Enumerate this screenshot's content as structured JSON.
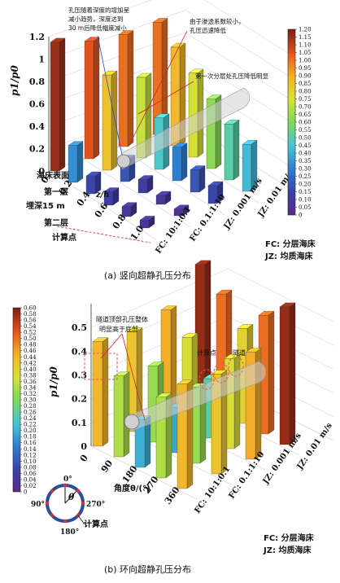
{
  "figure": {
    "panel_a_caption": "(a) 竖向超静孔压分布",
    "panel_b_caption": "(b) 环向超静孔压分布"
  },
  "chart_data": [
    {
      "type": "bar",
      "panel": "a",
      "ylabel": "p1/p0",
      "xlabel": "z/h",
      "ylim": [
        0,
        1.2
      ],
      "yticks": [
        0,
        0.2,
        0.4,
        0.6,
        0.8,
        1.0,
        1.2
      ],
      "categories": [
        "0",
        "0.2",
        "0.4",
        "0.6",
        "0.8",
        "1.0"
      ],
      "series": [
        {
          "name": "FC: 10:1:0.1",
          "values": [
            1.15,
            0.33,
            0.16,
            0.12,
            0.09,
            0.07
          ]
        },
        {
          "name": "FC: 0.1:1:10",
          "values": [
            1.05,
            0.85,
            0.2,
            0.12,
            0.08,
            0.06
          ]
        },
        {
          "name": "JZ: 0.001 m/s",
          "values": [
            1.0,
            0.72,
            0.46,
            0.3,
            0.2,
            0.16
          ]
        },
        {
          "name": "JZ: 0.01 m/s",
          "values": [
            1.0,
            0.88,
            0.75,
            0.62,
            0.5,
            0.42
          ]
        }
      ],
      "colorbar": {
        "min": 0,
        "max": 1.2,
        "ticks": [
          "0",
          "0.05",
          "0.10",
          "0.15",
          "0.20",
          "0.25",
          "0.30",
          "0.35",
          "0.40",
          "0.45",
          "0.50",
          "0.55",
          "0.60",
          "0.65",
          "0.70",
          "0.75",
          "0.80",
          "0.85",
          "0.90",
          "0.95",
          "1.00",
          "1.05",
          "1.10",
          "1.15",
          "1.20"
        ]
      },
      "annotations": {
        "a1": "孔压随着深度的增加呈",
        "a2": "减小趋势，深度达到",
        "a3": "30 m后降低幅度减小",
        "b1": "由于渗透系数较小，",
        "b2": "孔压迅速降低",
        "c1": "第一次分层处孔压降低明显",
        "seabed": "海床表面",
        "layer1": "第一层",
        "burial": "埋深15 m",
        "layer2": "第二层",
        "calc": "计算点",
        "legend1": "FC: 分层海床",
        "legend2": "JZ: 均质海床"
      }
    },
    {
      "type": "bar",
      "panel": "b",
      "ylabel": "p1/p0",
      "xlabel": "角度θ/(°)",
      "ylim": [
        0,
        0.6
      ],
      "yticks": [
        0,
        0.1,
        0.2,
        0.3,
        0.4,
        0.5
      ],
      "categories": [
        "0",
        "90",
        "180",
        "270",
        "360"
      ],
      "series": [
        {
          "name": "FC: 10:1:0.1",
          "values": [
            0.44,
            0.34,
            0.2,
            0.34,
            0.44
          ]
        },
        {
          "name": "FC: 0.1:1:10",
          "values": [
            0.42,
            0.32,
            0.19,
            0.32,
            0.42
          ]
        },
        {
          "name": "JZ: 0.001 m/s",
          "values": [
            0.45,
            0.38,
            0.25,
            0.38,
            0.45
          ]
        },
        {
          "name": "JZ: 0.01 m/s",
          "values": [
            0.58,
            0.5,
            0.4,
            0.5,
            0.58
          ]
        }
      ],
      "colorbar": {
        "min": 0,
        "max": 0.6,
        "ticks": [
          "0",
          "0.02",
          "0.04",
          "0.06",
          "0.08",
          "0.10",
          "0.12",
          "0.14",
          "0.16",
          "0.18",
          "0.20",
          "0.22",
          "0.24",
          "0.26",
          "0.28",
          "0.30",
          "0.32",
          "0.34",
          "0.36",
          "0.38",
          "0.40",
          "0.42",
          "0.44",
          "0.46",
          "0.48",
          "0.50",
          "0.52",
          "0.54",
          "0.56",
          "0.58",
          "0.60"
        ]
      },
      "annotations": {
        "a1": "隧道顶部孔压整体",
        "a2": "明显高于底部",
        "calc": "计算点",
        "tunnel": "隧道",
        "deg0": "0°",
        "deg90": "90°",
        "deg180": "180°",
        "deg270": "270°",
        "theta": "θ",
        "calc2": "计算点",
        "legend1": "FC: 分层海床",
        "legend2": "JZ: 均质海床"
      }
    }
  ]
}
